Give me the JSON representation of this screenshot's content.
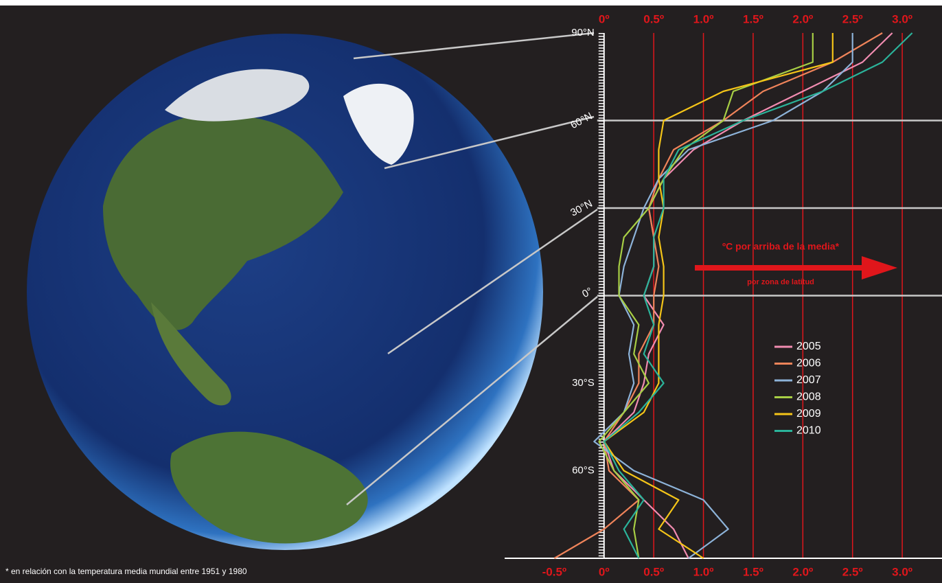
{
  "chart_data": {
    "type": "line",
    "xlim": [
      -1.0,
      3.4
    ],
    "ylim": [
      -90,
      90
    ],
    "xticks": [
      {
        "value": -0.5,
        "label": "-0.5º"
      },
      {
        "value": 0,
        "label": "0º"
      },
      {
        "value": 0.5,
        "label": "0.5º"
      },
      {
        "value": 1.0,
        "label": "1.0º"
      },
      {
        "value": 1.5,
        "label": "1.5º"
      },
      {
        "value": 2.0,
        "label": "2.0º"
      },
      {
        "value": 2.5,
        "label": "2.5º"
      },
      {
        "value": 3.0,
        "label": "3.0º"
      }
    ],
    "xticks_top": [
      {
        "value": 0,
        "label": "0º"
      },
      {
        "value": 0.5,
        "label": "0.5º"
      },
      {
        "value": 1.0,
        "label": "1.0º"
      },
      {
        "value": 1.5,
        "label": "1.5º"
      },
      {
        "value": 2.0,
        "label": "2.0º"
      },
      {
        "value": 2.5,
        "label": "2.5º"
      },
      {
        "value": 3.0,
        "label": "3.0º"
      }
    ],
    "yticks": [
      {
        "value": 90,
        "label": "90°N"
      },
      {
        "value": 60,
        "label": "60°N"
      },
      {
        "value": 30,
        "label": "30°N"
      },
      {
        "value": 0,
        "label": "0°"
      },
      {
        "value": -30,
        "label": "30°S"
      },
      {
        "value": -60,
        "label": "60°S"
      }
    ],
    "grid": true,
    "grid_color": "#e0161b",
    "annotation": "ºC por arriba de la media*",
    "annotation_sub": "por zona de latitud",
    "footnote": "* en relación con la temperatura media mundial entre 1951 y 1980",
    "y": [
      90,
      80,
      70,
      60,
      50,
      40,
      30,
      20,
      10,
      0,
      -10,
      -20,
      -30,
      -40,
      -50,
      -60,
      -70,
      -80,
      -90
    ],
    "series": [
      {
        "name": "2005",
        "color": "#f28cb1",
        "values": [
          2.9,
          2.6,
          2.0,
          1.4,
          0.9,
          0.6,
          0.45,
          0.5,
          0.5,
          0.4,
          0.6,
          0.45,
          0.4,
          0.3,
          0.0,
          0.1,
          0.4,
          0.7,
          0.85
        ]
      },
      {
        "name": "2006",
        "color": "#f0845a",
        "values": [
          2.8,
          2.3,
          1.6,
          1.2,
          0.7,
          0.55,
          0.45,
          0.5,
          0.55,
          0.5,
          0.5,
          0.35,
          0.35,
          0.2,
          0.0,
          0.05,
          0.35,
          0.0,
          -0.5
        ]
      },
      {
        "name": "2007",
        "color": "#8db3d9",
        "values": [
          2.5,
          2.5,
          2.2,
          1.7,
          0.85,
          0.55,
          0.4,
          0.3,
          0.2,
          0.15,
          0.3,
          0.25,
          0.3,
          0.2,
          -0.1,
          0.3,
          1.0,
          1.25,
          0.85
        ]
      },
      {
        "name": "2008",
        "color": "#a8cf45",
        "values": [
          2.1,
          2.1,
          1.3,
          1.2,
          0.8,
          0.6,
          0.45,
          0.2,
          0.15,
          0.15,
          0.35,
          0.3,
          0.45,
          0.2,
          -0.05,
          0.1,
          0.35,
          0.3,
          0.35
        ]
      },
      {
        "name": "2009",
        "color": "#f5c518",
        "values": [
          2.3,
          2.3,
          1.2,
          0.6,
          0.55,
          0.55,
          0.6,
          0.55,
          0.6,
          0.6,
          0.55,
          0.55,
          0.55,
          0.4,
          0.0,
          0.2,
          0.75,
          0.55,
          1.0
        ]
      },
      {
        "name": "2010",
        "color": "#2bb39a",
        "values": [
          3.1,
          2.8,
          2.2,
          1.4,
          0.75,
          0.6,
          0.6,
          0.5,
          0.5,
          0.4,
          0.5,
          0.4,
          0.6,
          0.35,
          0.0,
          0.15,
          0.4,
          0.2,
          0.35
        ]
      }
    ]
  }
}
